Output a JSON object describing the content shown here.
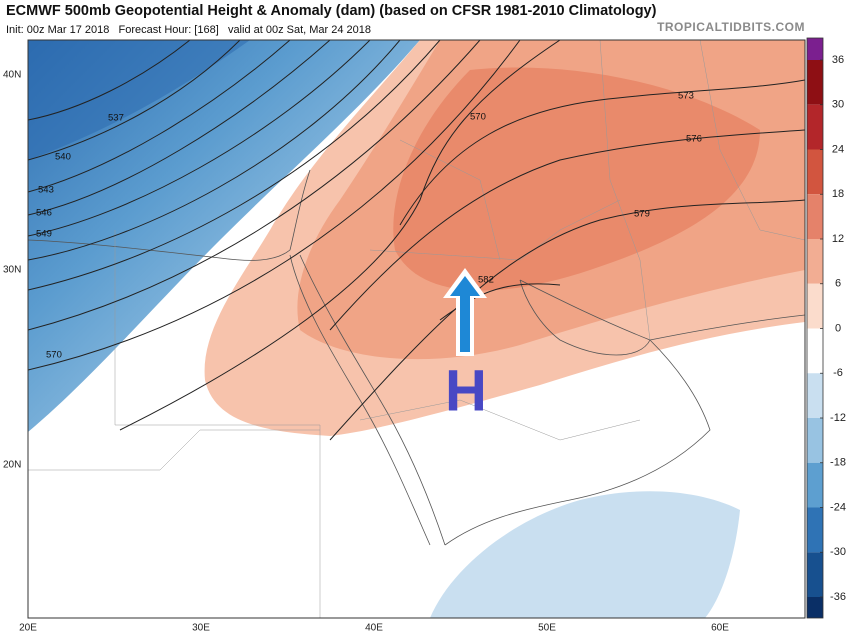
{
  "header": {
    "title": "ECMWF 500mb Geopotential Height & Anomaly (dam) (based on CFSR 1981-2010 Climatology)",
    "subtitle": "Init: 00z Mar 17 2018   Forecast Hour: [168]   valid at 00z Sat, Mar 24 2018",
    "brand": "TROPICALTIDBITS.COM"
  },
  "map": {
    "lat_labels": [
      "40N",
      "30N",
      "20N"
    ],
    "lon_labels": [
      "20E",
      "30E",
      "40E",
      "50E",
      "60E"
    ],
    "contour_labels": [
      "537",
      "540",
      "543",
      "546",
      "549",
      "570",
      "570",
      "573",
      "576",
      "579",
      "582"
    ],
    "high_label": "H"
  },
  "colorbar": {
    "ticks": [
      36,
      30,
      24,
      18,
      12,
      6,
      0,
      -6,
      -12,
      -18,
      -24,
      -30,
      -36
    ],
    "colors": [
      "#7b1f8f",
      "#8e0f14",
      "#b3262a",
      "#d2553f",
      "#e5826a",
      "#f2ad93",
      "#fbdccc",
      "#ffffff",
      "#c9dff0",
      "#98c3e2",
      "#5d9fd0",
      "#2f73b5",
      "#17508f",
      "#0a2f66"
    ]
  }
}
